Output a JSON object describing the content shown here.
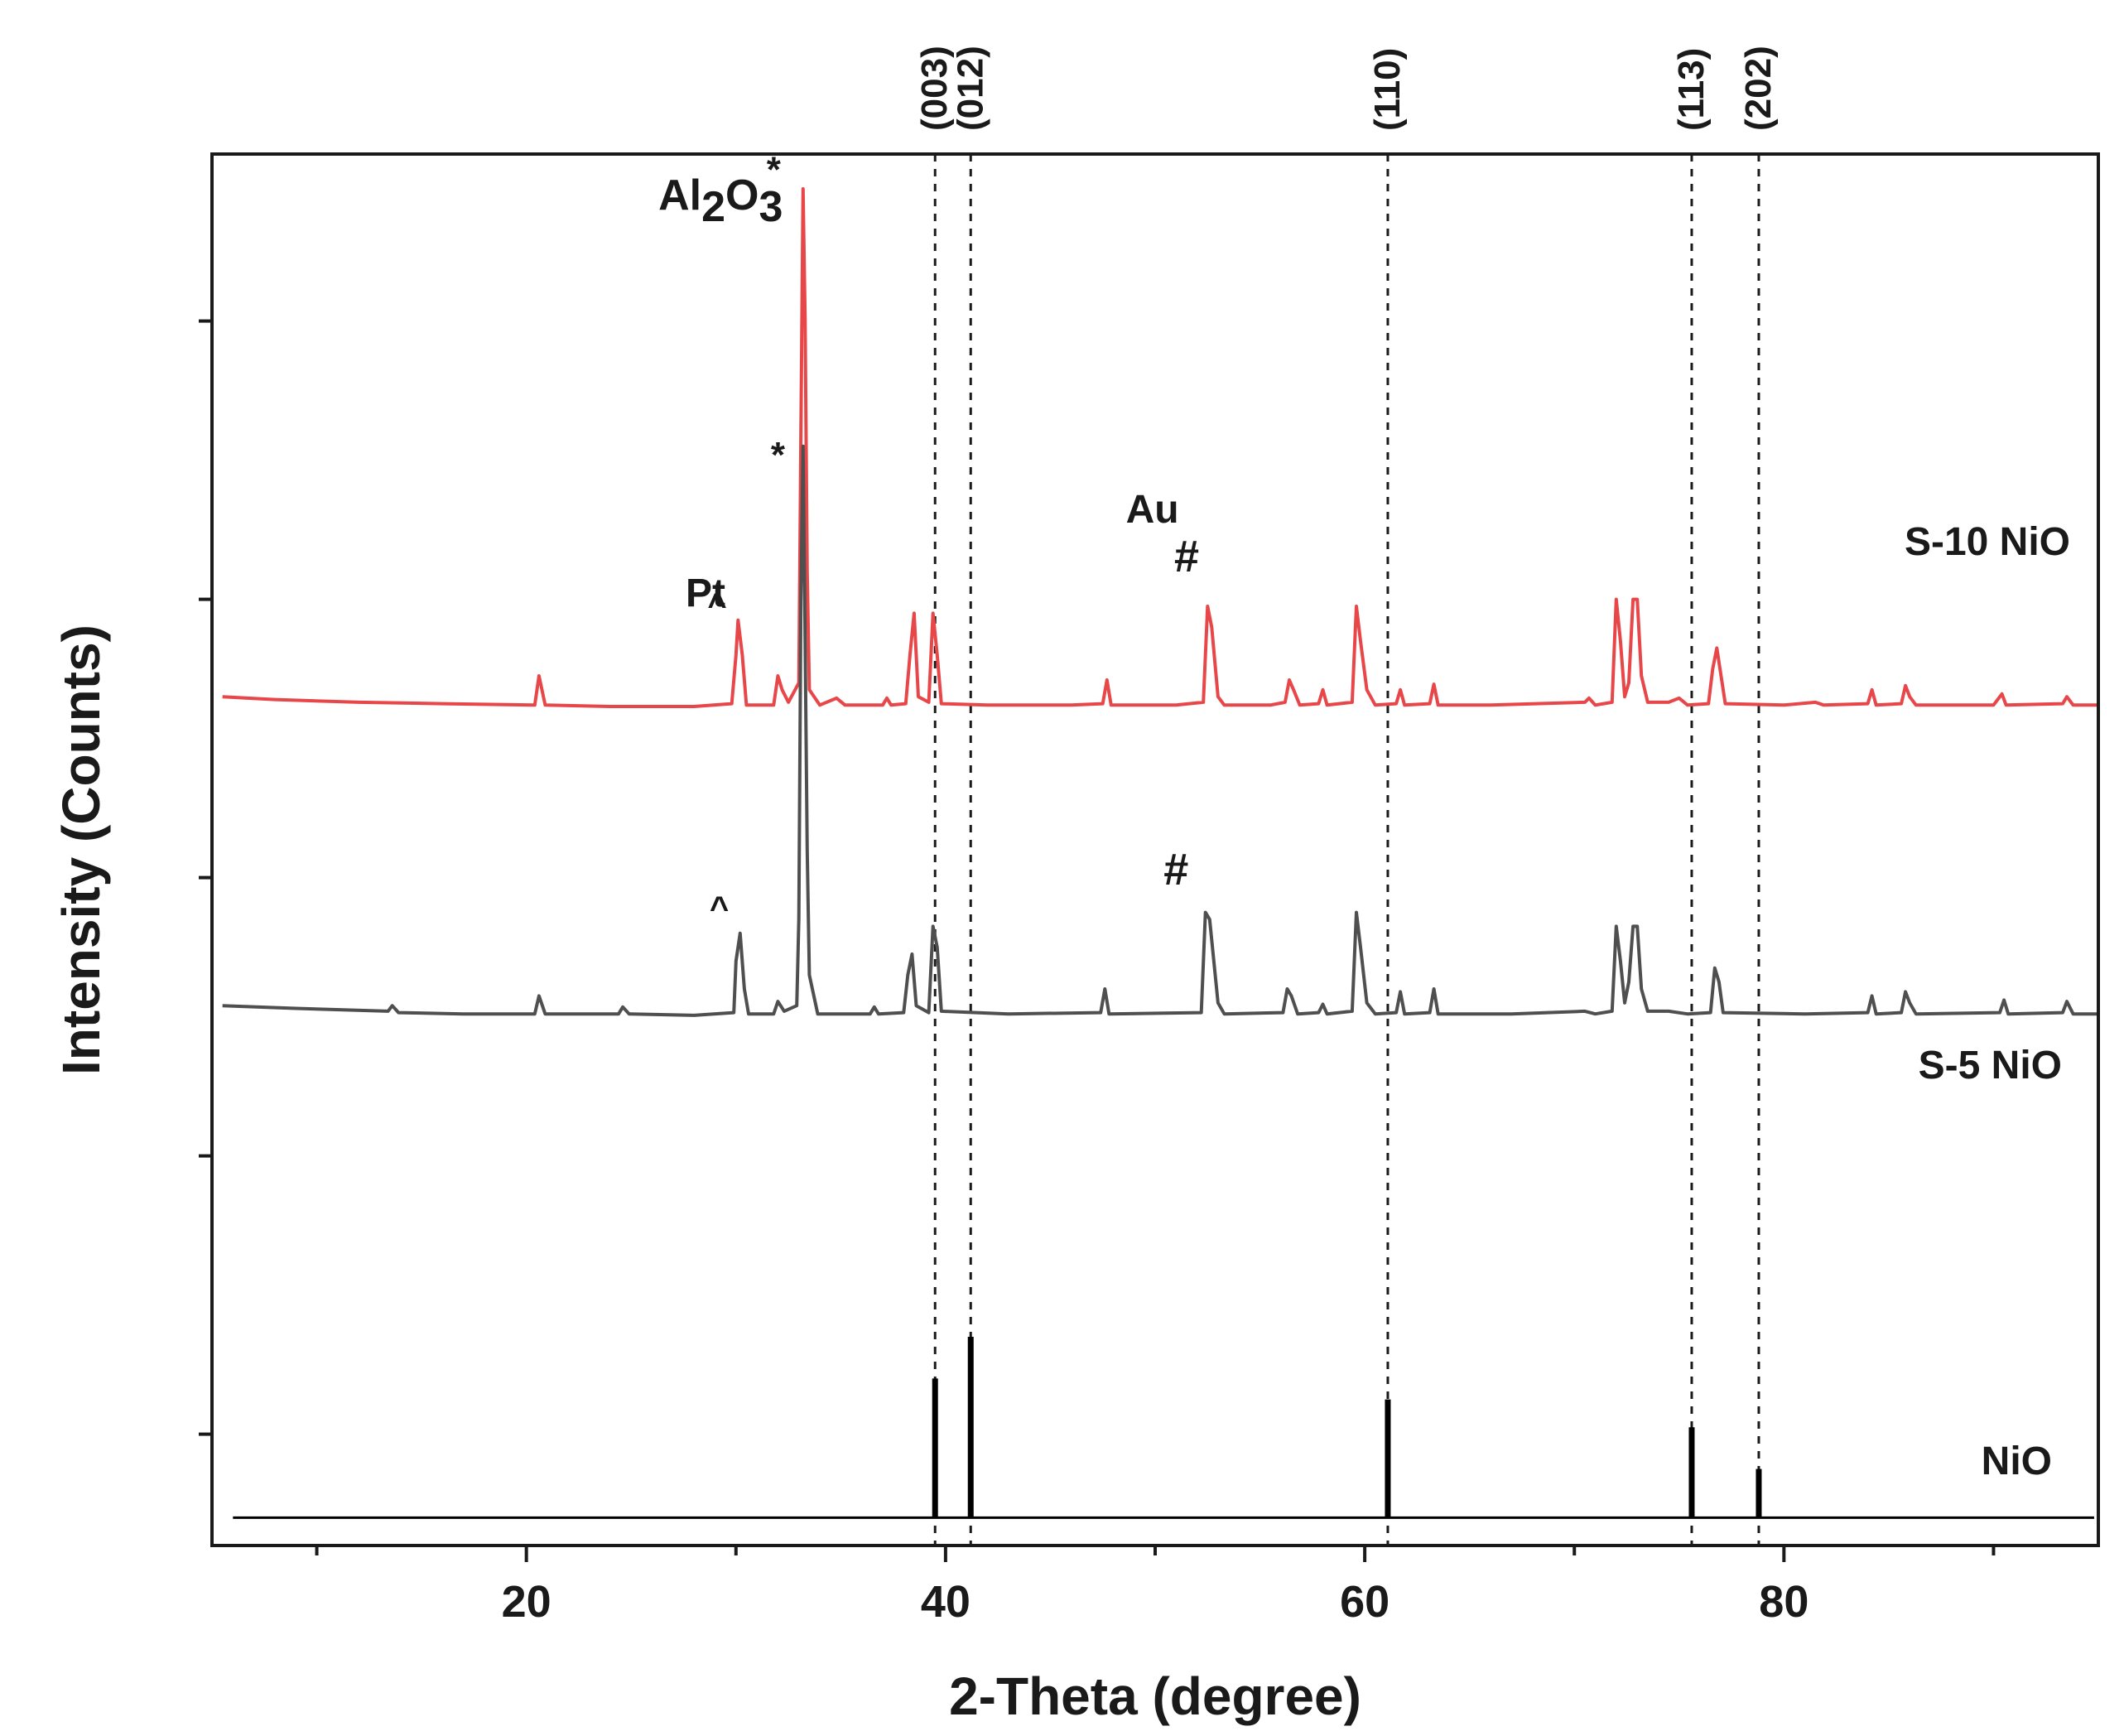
{
  "chart_data": {
    "type": "line",
    "title": "",
    "xlabel": "2-Theta (degree)",
    "ylabel": "Intensity (Counts)",
    "xlim": [
      5,
      95
    ],
    "ylim": [
      0,
      100
    ],
    "xticks": [
      20,
      40,
      60,
      80
    ],
    "xticks_minor": [
      10,
      30,
      50,
      70,
      90
    ],
    "yticks": [
      8,
      28,
      48,
      68,
      88
    ],
    "grid": false,
    "legend": "none",
    "colors": {
      "S10": "#e8474a",
      "S5": "#4f4f4f",
      "NiO": "#000000",
      "axis": "#1a1a1a"
    },
    "series": [
      {
        "name": "S-10 NiO",
        "label": "S-10 NiO",
        "color": "#e8474a",
        "baseline": 60.3,
        "points": [
          [
            5.5,
            61.0
          ],
          [
            8,
            60.8
          ],
          [
            12,
            60.6
          ],
          [
            16,
            60.5
          ],
          [
            20.4,
            60.4
          ],
          [
            20.6,
            62.5
          ],
          [
            20.9,
            60.4
          ],
          [
            24,
            60.3
          ],
          [
            28,
            60.3
          ],
          [
            29.8,
            60.5
          ],
          [
            30.0,
            64.0
          ],
          [
            30.1,
            66.5
          ],
          [
            30.3,
            64.0
          ],
          [
            30.5,
            60.4
          ],
          [
            31.8,
            60.4
          ],
          [
            32.0,
            62.5
          ],
          [
            32.2,
            61.5
          ],
          [
            32.5,
            60.6
          ],
          [
            33.0,
            62.0
          ],
          [
            33.1,
            80.0
          ],
          [
            33.2,
            97.5
          ],
          [
            33.3,
            88.0
          ],
          [
            33.4,
            70.0
          ],
          [
            33.5,
            61.5
          ],
          [
            34.0,
            60.4
          ],
          [
            34.8,
            60.9
          ],
          [
            35.2,
            60.4
          ],
          [
            37.0,
            60.4
          ],
          [
            37.2,
            60.9
          ],
          [
            37.4,
            60.4
          ],
          [
            38.1,
            60.5
          ],
          [
            38.3,
            64.0
          ],
          [
            38.5,
            67.0
          ],
          [
            38.7,
            61.0
          ],
          [
            39.2,
            60.6
          ],
          [
            39.4,
            67.0
          ],
          [
            39.6,
            64.0
          ],
          [
            39.8,
            60.5
          ],
          [
            42,
            60.4
          ],
          [
            46,
            60.4
          ],
          [
            47.5,
            60.5
          ],
          [
            47.7,
            62.2
          ],
          [
            47.9,
            60.4
          ],
          [
            51,
            60.4
          ],
          [
            52.3,
            60.6
          ],
          [
            52.5,
            67.5
          ],
          [
            52.7,
            66.0
          ],
          [
            53.0,
            61.0
          ],
          [
            53.3,
            60.4
          ],
          [
            55.5,
            60.4
          ],
          [
            56.2,
            60.6
          ],
          [
            56.4,
            62.2
          ],
          [
            56.6,
            61.5
          ],
          [
            56.9,
            60.4
          ],
          [
            57.8,
            60.5
          ],
          [
            58.0,
            61.5
          ],
          [
            58.2,
            60.4
          ],
          [
            59.4,
            60.6
          ],
          [
            59.6,
            67.5
          ],
          [
            59.8,
            65.0
          ],
          [
            60.1,
            61.5
          ],
          [
            60.5,
            60.4
          ],
          [
            61.5,
            60.5
          ],
          [
            61.7,
            61.5
          ],
          [
            61.9,
            60.4
          ],
          [
            63.1,
            60.5
          ],
          [
            63.3,
            61.9
          ],
          [
            63.5,
            60.4
          ],
          [
            66,
            60.4
          ],
          [
            70.5,
            60.6
          ],
          [
            70.7,
            60.9
          ],
          [
            71.0,
            60.4
          ],
          [
            71.8,
            60.6
          ],
          [
            72.0,
            68.0
          ],
          [
            72.2,
            65.0
          ],
          [
            72.4,
            61.0
          ],
          [
            72.6,
            62.0
          ],
          [
            72.8,
            68.0
          ],
          [
            73.0,
            68.0
          ],
          [
            73.2,
            62.5
          ],
          [
            73.5,
            60.6
          ],
          [
            74.5,
            60.6
          ],
          [
            75.0,
            60.9
          ],
          [
            75.4,
            60.4
          ],
          [
            76.4,
            60.5
          ],
          [
            76.6,
            63.0
          ],
          [
            76.8,
            64.5
          ],
          [
            77.0,
            62.5
          ],
          [
            77.2,
            60.5
          ],
          [
            80,
            60.4
          ],
          [
            81.5,
            60.6
          ],
          [
            81.9,
            60.4
          ],
          [
            84.0,
            60.5
          ],
          [
            84.2,
            61.5
          ],
          [
            84.4,
            60.4
          ],
          [
            85.6,
            60.5
          ],
          [
            85.8,
            61.8
          ],
          [
            86.0,
            61.0
          ],
          [
            86.3,
            60.4
          ],
          [
            90,
            60.4
          ],
          [
            90.4,
            61.2
          ],
          [
            90.6,
            60.4
          ],
          [
            93.3,
            60.5
          ],
          [
            93.5,
            61.0
          ],
          [
            93.8,
            60.4
          ],
          [
            95,
            60.4
          ]
        ]
      },
      {
        "name": "S-5 NiO",
        "label": "S-5 NiO",
        "color": "#4f4f4f",
        "baseline": 38.0,
        "points": [
          [
            5.5,
            38.8
          ],
          [
            9,
            38.6
          ],
          [
            13.4,
            38.4
          ],
          [
            13.6,
            38.8
          ],
          [
            13.9,
            38.3
          ],
          [
            17,
            38.2
          ],
          [
            20.4,
            38.2
          ],
          [
            20.6,
            39.5
          ],
          [
            20.9,
            38.2
          ],
          [
            24.4,
            38.2
          ],
          [
            24.6,
            38.7
          ],
          [
            24.9,
            38.2
          ],
          [
            28,
            38.1
          ],
          [
            29.9,
            38.3
          ],
          [
            30.0,
            42.0
          ],
          [
            30.2,
            44.0
          ],
          [
            30.4,
            40.0
          ],
          [
            30.6,
            38.2
          ],
          [
            31.8,
            38.2
          ],
          [
            32.0,
            39.1
          ],
          [
            32.3,
            38.4
          ],
          [
            32.9,
            38.8
          ],
          [
            33.0,
            45.0
          ],
          [
            33.1,
            68.0
          ],
          [
            33.2,
            79.0
          ],
          [
            33.3,
            65.0
          ],
          [
            33.4,
            50.0
          ],
          [
            33.5,
            41.0
          ],
          [
            33.9,
            38.2
          ],
          [
            36.4,
            38.2
          ],
          [
            36.6,
            38.7
          ],
          [
            36.8,
            38.2
          ],
          [
            38.0,
            38.3
          ],
          [
            38.2,
            41.0
          ],
          [
            38.4,
            42.5
          ],
          [
            38.6,
            38.8
          ],
          [
            39.2,
            38.3
          ],
          [
            39.4,
            44.5
          ],
          [
            39.6,
            43.0
          ],
          [
            39.8,
            38.4
          ],
          [
            43,
            38.2
          ],
          [
            47.4,
            38.3
          ],
          [
            47.6,
            40.0
          ],
          [
            47.8,
            38.2
          ],
          [
            52.2,
            38.3
          ],
          [
            52.4,
            45.5
          ],
          [
            52.6,
            45.0
          ],
          [
            53.0,
            39.0
          ],
          [
            53.3,
            38.2
          ],
          [
            56.1,
            38.3
          ],
          [
            56.3,
            40.0
          ],
          [
            56.5,
            39.5
          ],
          [
            56.8,
            38.2
          ],
          [
            57.8,
            38.3
          ],
          [
            58.0,
            38.9
          ],
          [
            58.2,
            38.2
          ],
          [
            59.4,
            38.4
          ],
          [
            59.6,
            45.5
          ],
          [
            59.8,
            43.0
          ],
          [
            60.1,
            39.0
          ],
          [
            60.5,
            38.2
          ],
          [
            61.5,
            38.3
          ],
          [
            61.7,
            39.8
          ],
          [
            61.9,
            38.2
          ],
          [
            63.1,
            38.3
          ],
          [
            63.3,
            40.0
          ],
          [
            63.5,
            38.2
          ],
          [
            67,
            38.2
          ],
          [
            70.5,
            38.4
          ],
          [
            71.0,
            38.2
          ],
          [
            71.8,
            38.4
          ],
          [
            72.0,
            44.5
          ],
          [
            72.2,
            42.0
          ],
          [
            72.4,
            39.0
          ],
          [
            72.6,
            40.5
          ],
          [
            72.8,
            44.5
          ],
          [
            73.0,
            44.5
          ],
          [
            73.2,
            40.0
          ],
          [
            73.5,
            38.4
          ],
          [
            74.5,
            38.4
          ],
          [
            75.4,
            38.2
          ],
          [
            76.5,
            38.3
          ],
          [
            76.7,
            41.5
          ],
          [
            76.9,
            40.5
          ],
          [
            77.1,
            38.3
          ],
          [
            81,
            38.2
          ],
          [
            84.0,
            38.3
          ],
          [
            84.2,
            39.5
          ],
          [
            84.4,
            38.2
          ],
          [
            85.6,
            38.3
          ],
          [
            85.8,
            39.8
          ],
          [
            86.0,
            39.0
          ],
          [
            86.3,
            38.2
          ],
          [
            90.3,
            38.3
          ],
          [
            90.5,
            39.2
          ],
          [
            90.7,
            38.2
          ],
          [
            93.3,
            38.3
          ],
          [
            93.5,
            39.1
          ],
          [
            93.8,
            38.2
          ],
          [
            95,
            38.2
          ]
        ]
      },
      {
        "name": "NiO",
        "label": "NiO",
        "color": "#000000",
        "type": "stick",
        "baseline": 2.0,
        "peaks": [
          [
            39.5,
            10.0
          ],
          [
            41.2,
            13.0
          ],
          [
            61.1,
            8.5
          ],
          [
            75.6,
            6.5
          ],
          [
            78.8,
            3.5
          ]
        ]
      }
    ],
    "reference_lines": [
      {
        "x": 39.5,
        "label": "(003)"
      },
      {
        "x": 41.2,
        "label": "(012)"
      },
      {
        "x": 61.1,
        "label": "(110)"
      },
      {
        "x": 75.6,
        "label": "(113)"
      },
      {
        "x": 78.8,
        "label": "(202)"
      }
    ],
    "annotations": [
      {
        "series": "S-10 NiO",
        "symbol": "*",
        "x": 31.8,
        "y": 98.0,
        "name": "al2o3-star-s10"
      },
      {
        "series": "S-10 NiO",
        "symbol": "^",
        "x": 29.1,
        "y": 66.8,
        "name": "pt-caret-s10"
      },
      {
        "series": "S-10 NiO",
        "symbol": "#",
        "x": 51.5,
        "y": 70.0,
        "name": "au-hash-s10"
      },
      {
        "series": "S-5 NiO",
        "symbol": "*",
        "x": 32.0,
        "y": 77.5,
        "name": "al2o3-star-s5"
      },
      {
        "series": "S-5 NiO",
        "symbol": "^",
        "x": 29.2,
        "y": 45.0,
        "name": "pt-caret-s5"
      },
      {
        "series": "S-5 NiO",
        "symbol": "#",
        "x": 51.0,
        "y": 47.5,
        "name": "au-hash-s5"
      }
    ],
    "phase_labels": [
      {
        "text": "Pt",
        "x": 27.6,
        "y": 67.5
      },
      {
        "text": "Au",
        "x": 48.6,
        "y": 73.5
      }
    ],
    "al2o3_label": {
      "base": "Al",
      "sub1": "2",
      "mid": "O",
      "sub2": "3",
      "x": 26.3,
      "y": 96.0
    }
  }
}
